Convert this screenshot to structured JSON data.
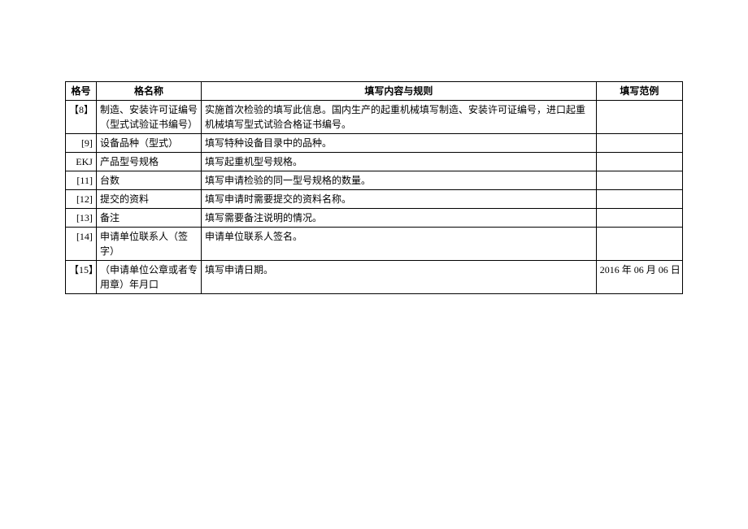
{
  "table": {
    "headers": {
      "id": "格号",
      "name": "格名称",
      "content": "填写内容与规则",
      "example": "填写范例"
    },
    "rows": [
      {
        "id": "【8】",
        "name": "制造、安装许可证编号（型式试验证书编号）",
        "content": "实施首次检验的填写此信息。国内生产的起重机械填写制造、安装许可证编号，进口起重机械填写型式试验合格证书编号。",
        "example": ""
      },
      {
        "id": "[9]",
        "name": "设备品种（型式）",
        "content": "填写特种设备目录中的品种。",
        "example": ""
      },
      {
        "id": "EKJ",
        "name": "产品型号规格",
        "content": "填写起重机型号规格。",
        "example": ""
      },
      {
        "id": "[11]",
        "name": "台数",
        "content": "填写申请检验的同一型号规格的数量。",
        "example": ""
      },
      {
        "id": "[12]",
        "name": "提交的资料",
        "content": "填写申请时需要提交的资料名称。",
        "example": ""
      },
      {
        "id": "[13]",
        "name": "备注",
        "content": "填写需要备注说明的情况。",
        "example": ""
      },
      {
        "id": "[14]",
        "name": "申请单位联系人（签字）",
        "content": "申请单位联系人签名。",
        "example": ""
      },
      {
        "id": "【15】",
        "name": "（申请单位公章或者专用章）年月口",
        "content": "填写申请日期。",
        "example": "2016 年 06 月 06 日"
      }
    ]
  }
}
